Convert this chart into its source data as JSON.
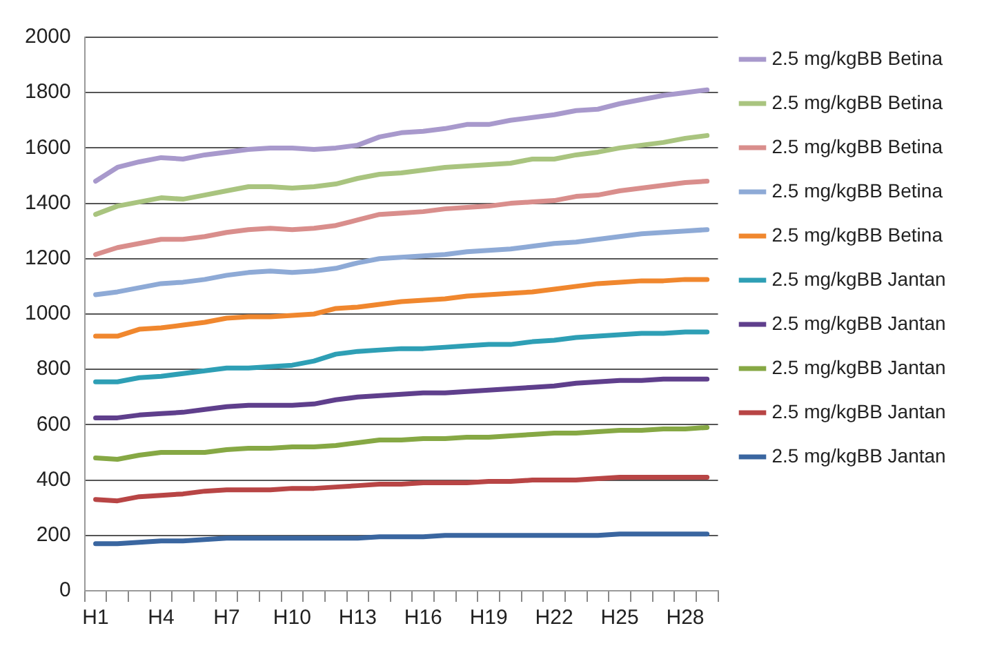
{
  "chart_data": {
    "type": "line",
    "categories": [
      "H1",
      null,
      null,
      "H4",
      null,
      null,
      "H7",
      null,
      null,
      "H10",
      null,
      null,
      "H13",
      null,
      null,
      "H16",
      null,
      null,
      "H19",
      null,
      null,
      "H22",
      null,
      null,
      "H25",
      null,
      null,
      "H28",
      null
    ],
    "series": [
      {
        "name": "2.5 mg/kgBB Betina",
        "color": "#a899cc",
        "values": [
          1480,
          1530,
          1550,
          1565,
          1560,
          1575,
          1585,
          1595,
          1600,
          1600,
          1595,
          1600,
          1610,
          1640,
          1655,
          1660,
          1670,
          1685,
          1685,
          1700,
          1710,
          1720,
          1735,
          1740,
          1760,
          1775,
          1790,
          1800,
          1810
        ]
      },
      {
        "name": "2.5 mg/kgBB Betina",
        "color": "#a9c47f",
        "values": [
          1360,
          1390,
          1405,
          1420,
          1415,
          1430,
          1445,
          1460,
          1460,
          1455,
          1460,
          1470,
          1490,
          1505,
          1510,
          1520,
          1530,
          1535,
          1540,
          1545,
          1560,
          1560,
          1575,
          1585,
          1600,
          1610,
          1620,
          1635,
          1645
        ]
      },
      {
        "name": "2.5 mg/kgBB Betina",
        "color": "#d98e8c",
        "values": [
          1215,
          1240,
          1255,
          1270,
          1270,
          1280,
          1295,
          1305,
          1310,
          1305,
          1310,
          1320,
          1340,
          1360,
          1365,
          1370,
          1380,
          1385,
          1390,
          1400,
          1405,
          1410,
          1425,
          1430,
          1445,
          1455,
          1465,
          1475,
          1480
        ]
      },
      {
        "name": "2.5 mg/kgBB Betina",
        "color": "#8eaad6",
        "values": [
          1070,
          1080,
          1095,
          1110,
          1115,
          1125,
          1140,
          1150,
          1155,
          1150,
          1155,
          1165,
          1185,
          1200,
          1205,
          1210,
          1215,
          1225,
          1230,
          1235,
          1245,
          1255,
          1260,
          1270,
          1280,
          1290,
          1295,
          1300,
          1305
        ]
      },
      {
        "name": "2.5 mg/kgBB Betina",
        "color": "#f0872e",
        "values": [
          920,
          920,
          945,
          950,
          960,
          970,
          985,
          990,
          990,
          995,
          1000,
          1020,
          1025,
          1035,
          1045,
          1050,
          1055,
          1065,
          1070,
          1075,
          1080,
          1090,
          1100,
          1110,
          1115,
          1120,
          1120,
          1125,
          1125
        ]
      },
      {
        "name": "2.5 mg/kgBB Jantan",
        "color": "#2e9fb5",
        "values": [
          755,
          755,
          770,
          775,
          785,
          795,
          805,
          805,
          810,
          815,
          830,
          855,
          865,
          870,
          875,
          875,
          880,
          885,
          890,
          890,
          900,
          905,
          915,
          920,
          925,
          930,
          930,
          935,
          935
        ]
      },
      {
        "name": "2.5 mg/kgBB Jantan",
        "color": "#5f3f8c",
        "values": [
          625,
          625,
          635,
          640,
          645,
          655,
          665,
          670,
          670,
          670,
          675,
          690,
          700,
          705,
          710,
          715,
          715,
          720,
          725,
          730,
          735,
          740,
          750,
          755,
          760,
          760,
          765,
          765,
          765
        ]
      },
      {
        "name": "2.5 mg/kgBB Jantan",
        "color": "#86a844",
        "values": [
          480,
          475,
          490,
          500,
          500,
          500,
          510,
          515,
          515,
          520,
          520,
          525,
          535,
          545,
          545,
          550,
          550,
          555,
          555,
          560,
          565,
          570,
          570,
          575,
          580,
          580,
          585,
          585,
          590
        ]
      },
      {
        "name": "2.5 mg/kgBB Jantan",
        "color": "#b84545",
        "values": [
          330,
          325,
          340,
          345,
          350,
          360,
          365,
          365,
          365,
          370,
          370,
          375,
          380,
          385,
          385,
          390,
          390,
          390,
          395,
          395,
          400,
          400,
          400,
          405,
          410,
          410,
          410,
          410,
          410
        ]
      },
      {
        "name": "2.5 mg/kgBB Jantan",
        "color": "#3a66a0",
        "values": [
          170,
          170,
          175,
          180,
          180,
          185,
          190,
          190,
          190,
          190,
          190,
          190,
          190,
          195,
          195,
          195,
          200,
          200,
          200,
          200,
          200,
          200,
          200,
          200,
          205,
          205,
          205,
          205,
          205
        ]
      }
    ],
    "ylim": [
      0,
      2000
    ],
    "yticks": [
      0,
      200,
      400,
      600,
      800,
      1000,
      1200,
      1400,
      1600,
      1800,
      2000
    ],
    "grid": "y",
    "legend": "right",
    "marker": "none",
    "line_style": "solid"
  }
}
